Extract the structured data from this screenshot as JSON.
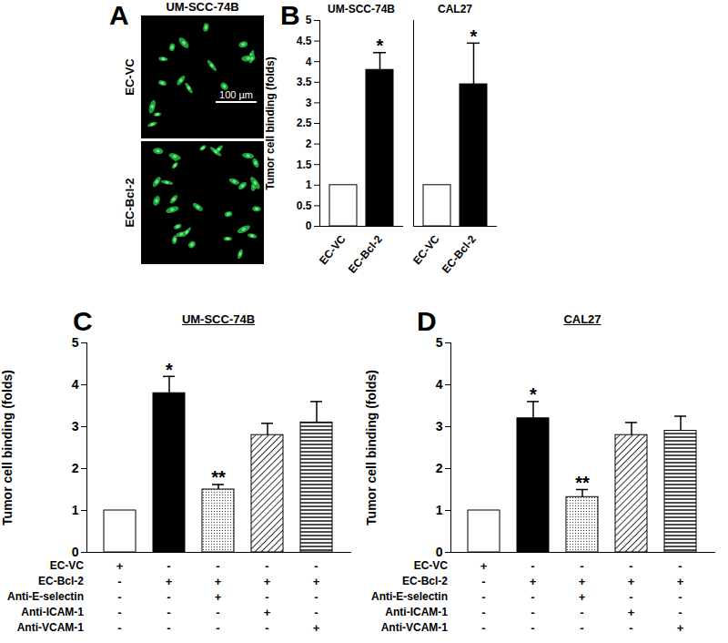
{
  "chart_data": [
    {
      "type": "image",
      "panel": "A",
      "title": "UM-SCC-74B",
      "rows": [
        "EC-VC",
        "EC-Bcl-2"
      ],
      "scale_bar": "100 µm"
    },
    {
      "type": "bar",
      "panel": "B",
      "categories": [
        "EC-VC",
        "EC-Bcl-2"
      ],
      "colors": [
        "#ffffff",
        "#000000"
      ],
      "groups": [
        {
          "name": "UM-SCC-74B",
          "values": [
            1,
            3.8
          ],
          "errors": [
            null,
            0.42
          ],
          "annotations": [
            null,
            "*"
          ]
        },
        {
          "name": "CAL27",
          "values": [
            1,
            3.45
          ],
          "errors": [
            null,
            1.0
          ],
          "annotations": [
            null,
            "*"
          ]
        }
      ],
      "y_label": "Tumor cell binding (folds)",
      "ylim": [
        0,
        5
      ],
      "yticks": [
        0,
        0.5,
        1,
        1.5,
        2,
        2.5,
        3,
        3.5,
        4,
        4.5,
        5
      ]
    },
    {
      "type": "bar",
      "panel": "C",
      "title": "UM-SCC-74B",
      "categories": [
        null,
        null,
        null,
        null,
        null
      ],
      "values": [
        1,
        3.8,
        1.5,
        2.8,
        3.1
      ],
      "errors": [
        null,
        0.4,
        0.12,
        0.28,
        0.5
      ],
      "annotations": [
        null,
        "*",
        "**",
        null,
        null
      ],
      "colors": [
        "#ffffff",
        "#000000",
        "#ffffff",
        "#ffffff",
        "#ffffff"
      ],
      "y_label": "Tumor cell binding (folds)",
      "ylim": [
        0,
        5
      ],
      "yticks": [
        0,
        1,
        2,
        3,
        4,
        5
      ],
      "conditions": [
        {
          "label": "EC-VC",
          "marks": [
            "+",
            "-",
            "-",
            "-",
            "-"
          ]
        },
        {
          "label": "EC-Bcl-2",
          "marks": [
            "-",
            "+",
            "+",
            "+",
            "+"
          ]
        },
        {
          "label": "Anti-E-selectin",
          "marks": [
            "-",
            "-",
            "+",
            "-",
            "-"
          ]
        },
        {
          "label": "Anti-ICAM-1",
          "marks": [
            "-",
            "-",
            "-",
            "+",
            "-"
          ]
        },
        {
          "label": "Anti-VCAM-1",
          "marks": [
            "-",
            "-",
            "-",
            "-",
            "+"
          ]
        }
      ]
    },
    {
      "type": "bar",
      "panel": "D",
      "title": "CAL27",
      "categories": [
        null,
        null,
        null,
        null,
        null
      ],
      "values": [
        1,
        3.2,
        1.32,
        2.8,
        2.9
      ],
      "errors": [
        null,
        0.4,
        0.18,
        0.3,
        0.35
      ],
      "annotations": [
        null,
        "*",
        "**",
        null,
        null
      ],
      "colors": [
        "#ffffff",
        "#000000",
        "#ffffff",
        "#ffffff",
        "#ffffff"
      ],
      "y_label": "Tumor cell binding (folds)",
      "ylim": [
        0,
        5
      ],
      "yticks": [
        0,
        1,
        2,
        3,
        4,
        5
      ],
      "conditions": [
        {
          "label": "EC-VC",
          "marks": [
            "+",
            "-",
            "-",
            "-",
            "-"
          ]
        },
        {
          "label": "EC-Bcl-2",
          "marks": [
            "-",
            "+",
            "+",
            "+",
            "+"
          ]
        },
        {
          "label": "Anti-E-selectin",
          "marks": [
            "-",
            "-",
            "+",
            "-",
            "-"
          ]
        },
        {
          "label": "Anti-ICAM-1",
          "marks": [
            "-",
            "-",
            "-",
            "+",
            "-"
          ]
        },
        {
          "label": "Anti-VCAM-1",
          "marks": [
            "-",
            "-",
            "-",
            "-",
            "+"
          ]
        }
      ]
    }
  ]
}
